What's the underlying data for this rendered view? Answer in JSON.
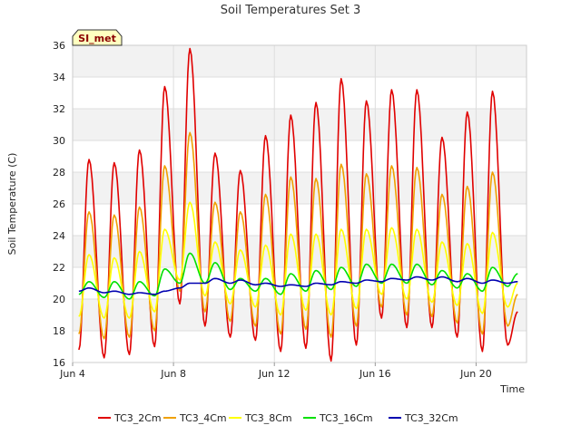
{
  "chart_data": {
    "type": "line",
    "title": "Soil Temperatures Set 3",
    "xlabel": "Time",
    "ylabel": "Soil Temperature (C)",
    "badge": "SI_met",
    "xlim": [
      4.0,
      22.0
    ],
    "ylim": [
      16,
      36
    ],
    "yticks": [
      16,
      18,
      20,
      22,
      24,
      26,
      28,
      30,
      32,
      34,
      36
    ],
    "xticks": [
      {
        "value": 4,
        "label": "Jun 4"
      },
      {
        "value": 8,
        "label": "Jun 8"
      },
      {
        "value": 12,
        "label": "Jun 12"
      },
      {
        "value": 16,
        "label": "Jun 16"
      },
      {
        "value": 20,
        "label": "Jun 20"
      }
    ],
    "grid": true,
    "legend_position": "bottom",
    "daily_extremes": {
      "days": [
        4,
        5,
        6,
        7,
        8,
        9,
        10,
        11,
        12,
        13,
        14,
        15,
        16,
        17,
        18,
        19,
        20,
        21
      ],
      "peak_time": 0.65,
      "series": [
        {
          "name": "TC3_2Cm",
          "color": "#e00000",
          "mins": [
            16.8,
            16.3,
            16.5,
            17.0,
            19.7,
            18.3,
            17.6,
            17.4,
            16.7,
            16.9,
            16.1,
            17.1,
            18.8,
            18.2,
            18.2,
            17.6,
            16.7,
            17.1
          ],
          "maxs": [
            28.8,
            28.6,
            29.4,
            33.4,
            35.8,
            29.2,
            28.1,
            30.3,
            31.6,
            32.4,
            33.9,
            32.5,
            33.2,
            33.2,
            30.2,
            31.8,
            33.1,
            19.2
          ]
        },
        {
          "name": "TC3_4Cm",
          "color": "#f0a000",
          "mins": [
            17.8,
            17.5,
            17.6,
            18.0,
            20.5,
            19.2,
            18.6,
            18.3,
            17.8,
            18.1,
            17.6,
            18.3,
            19.5,
            19.0,
            18.9,
            18.5,
            17.8,
            18.3
          ],
          "maxs": [
            25.5,
            25.3,
            25.8,
            28.4,
            30.5,
            26.1,
            25.5,
            26.6,
            27.7,
            27.6,
            28.5,
            27.9,
            28.4,
            28.3,
            26.6,
            27.1,
            28.0,
            20.3
          ]
        },
        {
          "name": "TC3_8Cm",
          "color": "#ffff00",
          "mins": [
            18.9,
            18.8,
            18.8,
            19.2,
            21.2,
            20.2,
            19.7,
            19.5,
            19.0,
            19.3,
            19.0,
            19.4,
            20.3,
            20.0,
            19.8,
            19.6,
            19.1,
            19.5
          ],
          "maxs": [
            22.8,
            22.6,
            23.0,
            24.4,
            26.1,
            23.6,
            23.1,
            23.4,
            24.1,
            24.1,
            24.4,
            24.4,
            24.5,
            24.4,
            23.6,
            23.5,
            24.2,
            21.0
          ]
        },
        {
          "name": "TC3_16Cm",
          "color": "#00e000",
          "mins": [
            20.3,
            20.1,
            20.0,
            20.2,
            21.0,
            21.0,
            20.6,
            20.5,
            20.3,
            20.5,
            20.6,
            20.8,
            21.0,
            21.0,
            20.9,
            20.7,
            20.5,
            20.8
          ],
          "maxs": [
            21.1,
            21.1,
            21.1,
            21.9,
            22.9,
            22.3,
            21.3,
            21.3,
            21.6,
            21.8,
            22.0,
            22.2,
            22.2,
            22.2,
            21.8,
            21.6,
            22.0,
            21.6
          ]
        },
        {
          "name": "TC3_32Cm",
          "color": "#0000b0",
          "mins": [
            20.5,
            20.4,
            20.3,
            20.3,
            20.7,
            21.0,
            21.0,
            20.9,
            20.8,
            20.8,
            20.9,
            21.0,
            21.1,
            21.2,
            21.2,
            21.1,
            21.0,
            21.0
          ],
          "maxs": [
            20.7,
            20.5,
            20.4,
            20.5,
            21.0,
            21.3,
            21.2,
            21.0,
            20.9,
            21.0,
            21.1,
            21.2,
            21.3,
            21.4,
            21.4,
            21.3,
            21.2,
            21.1
          ]
        }
      ]
    }
  }
}
